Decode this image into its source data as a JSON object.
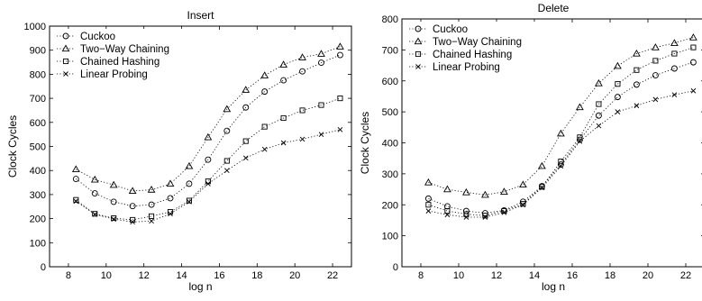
{
  "charts": [
    {
      "type": "line",
      "title": "Insert",
      "xlabel": "log n",
      "ylabel": "Clock Cycles",
      "xlim": [
        7,
        23
      ],
      "ylim": [
        0,
        1000
      ],
      "xticks": [
        8,
        10,
        12,
        14,
        16,
        18,
        20,
        22
      ],
      "yticks": [
        0,
        100,
        200,
        300,
        400,
        500,
        600,
        700,
        800,
        900,
        1000
      ],
      "x": [
        8.4,
        9.4,
        10.4,
        11.4,
        12.4,
        13.4,
        14.4,
        15.4,
        16.4,
        17.4,
        18.4,
        19.4,
        20.4,
        21.4,
        22.4
      ],
      "legend_position": "top-left",
      "series": [
        {
          "name": "Cuckoo",
          "marker": "circle",
          "values": [
            365,
            305,
            270,
            252,
            258,
            285,
            345,
            445,
            565,
            662,
            728,
            775,
            812,
            848,
            880
          ]
        },
        {
          "name": "Two−Way Chaining",
          "marker": "triangle",
          "values": [
            405,
            362,
            340,
            315,
            320,
            345,
            418,
            538,
            655,
            735,
            795,
            840,
            870,
            885,
            915
          ]
        },
        {
          "name": "Chained Hashing",
          "marker": "square",
          "values": [
            278,
            220,
            202,
            195,
            210,
            228,
            275,
            355,
            440,
            522,
            582,
            618,
            650,
            672,
            700
          ]
        },
        {
          "name": "Linear Probing",
          "marker": "x",
          "values": [
            272,
            218,
            198,
            186,
            190,
            220,
            270,
            345,
            400,
            452,
            488,
            515,
            530,
            550,
            570
          ]
        }
      ]
    },
    {
      "type": "line",
      "title": "Delete",
      "xlabel": "log n",
      "ylabel": "Clock Cycles",
      "xlim": [
        7,
        23
      ],
      "ylim": [
        0,
        800
      ],
      "xticks": [
        8,
        10,
        12,
        14,
        16,
        18,
        20,
        22
      ],
      "yticks": [
        0,
        100,
        200,
        300,
        400,
        500,
        600,
        700,
        800
      ],
      "x": [
        8.4,
        9.4,
        10.4,
        11.4,
        12.4,
        13.4,
        14.4,
        15.4,
        16.4,
        17.4,
        18.4,
        19.4,
        20.4,
        21.4,
        22.4
      ],
      "legend_position": "top-left",
      "series": [
        {
          "name": "Cuckoo",
          "marker": "circle",
          "values": [
            220,
            195,
            180,
            173,
            182,
            210,
            260,
            330,
            410,
            488,
            548,
            588,
            618,
            640,
            660
          ]
        },
        {
          "name": "Two−Way Chaining",
          "marker": "triangle",
          "values": [
            272,
            250,
            240,
            232,
            242,
            265,
            325,
            430,
            515,
            592,
            648,
            688,
            708,
            722,
            740
          ]
        },
        {
          "name": "Chained Hashing",
          "marker": "square",
          "values": [
            200,
            180,
            170,
            165,
            180,
            203,
            258,
            340,
            418,
            525,
            590,
            635,
            665,
            688,
            708
          ]
        },
        {
          "name": "Linear Probing",
          "marker": "x",
          "values": [
            180,
            168,
            160,
            160,
            175,
            200,
            255,
            325,
            405,
            455,
            500,
            520,
            540,
            555,
            568
          ]
        }
      ]
    }
  ]
}
